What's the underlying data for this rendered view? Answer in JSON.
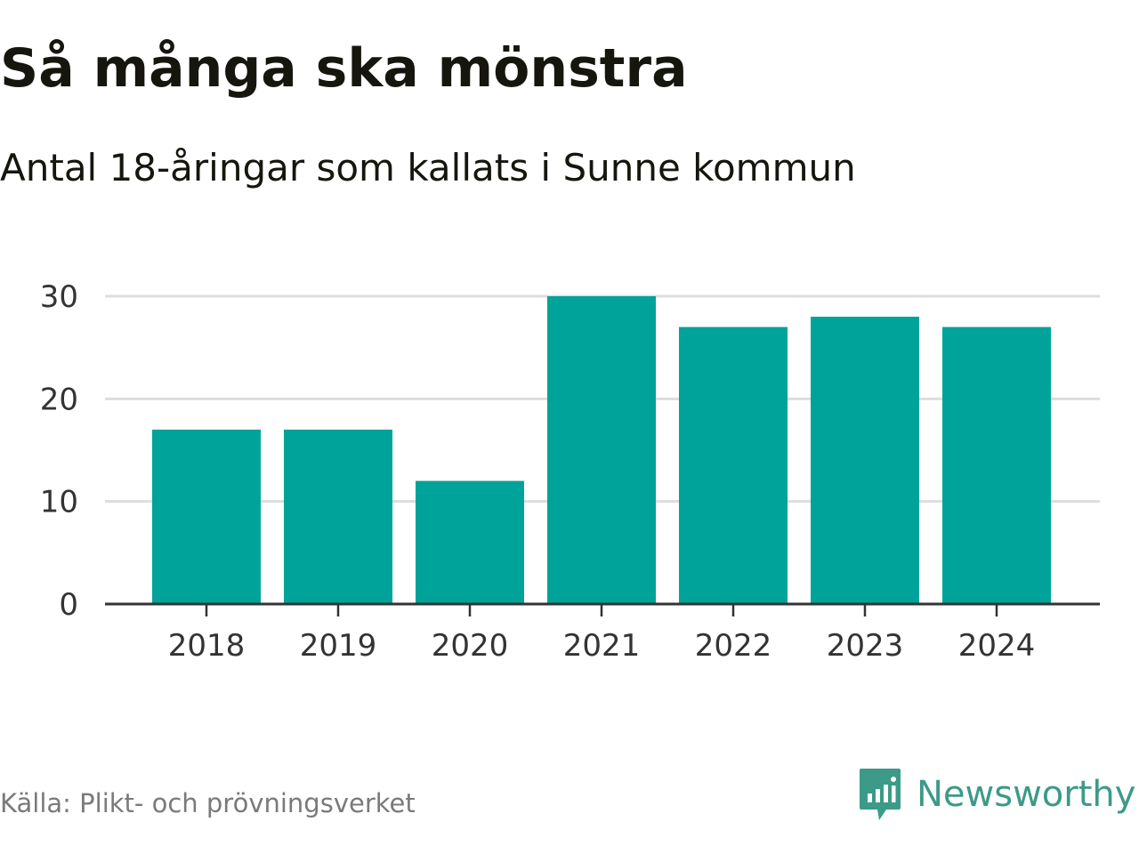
{
  "title": "Så många ska mönstra",
  "subtitle": "Antal 18-åringar som kallats i Sunne kommun",
  "source": "Källa: Plikt- och prövningsverket",
  "brand": {
    "name": "Newsworthy",
    "icon": "newsworthy-logo-icon",
    "color": "#3c9a88"
  },
  "colors": {
    "bar": "#00a39a",
    "grid": "#dddddd",
    "axis": "#333333"
  },
  "chart_data": {
    "type": "bar",
    "categories": [
      "2018",
      "2019",
      "2020",
      "2021",
      "2022",
      "2023",
      "2024"
    ],
    "values": [
      17,
      17,
      12,
      30,
      27,
      28,
      27
    ],
    "ylim": [
      0,
      30
    ],
    "yticks": [
      0,
      10,
      20,
      30
    ],
    "grid": true,
    "xlabel": "",
    "ylabel": ""
  }
}
